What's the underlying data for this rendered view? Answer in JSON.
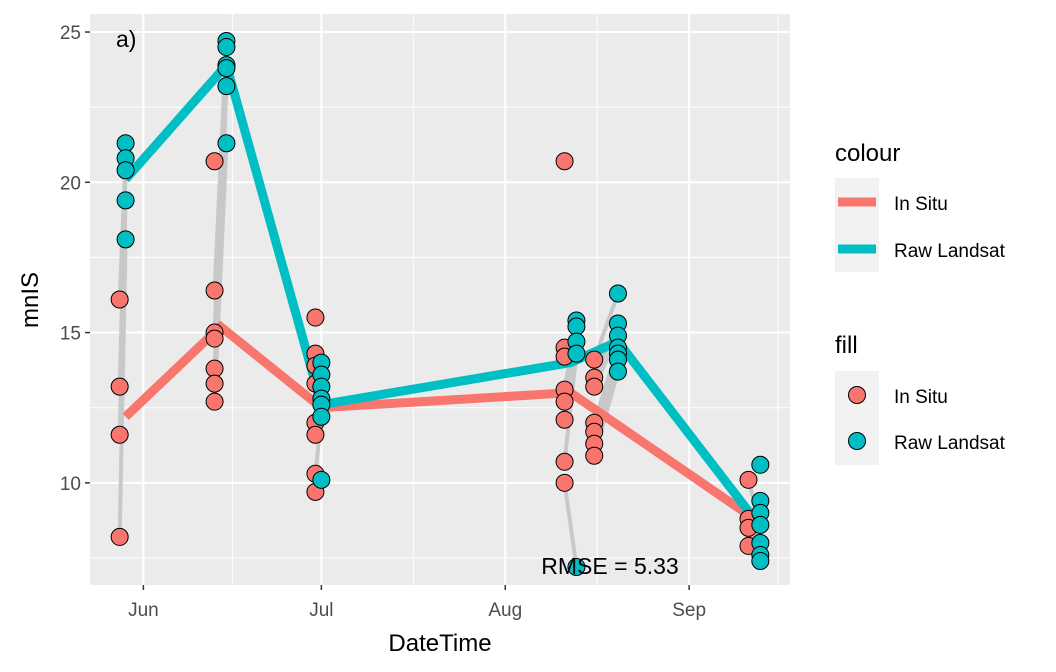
{
  "chart_data": {
    "type": "line",
    "panel_label": "a)",
    "xlabel": "DateTime",
    "ylabel": "mnIS",
    "x_ticks": [
      "Jun",
      "Jul",
      "Aug",
      "Sep"
    ],
    "x_tick_dates": [
      "2020-06-01",
      "2020-07-01",
      "2020-08-01",
      "2020-09-01"
    ],
    "xlim": [
      "2020-05-23",
      "2020-09-18"
    ],
    "ylim": [
      6.6,
      25.6
    ],
    "y_ticks": [
      10,
      15,
      20,
      25
    ],
    "grid": true,
    "annotation": "RMSE = 5.33",
    "colors": {
      "In Situ": "#F8766D",
      "Raw Landsat": "#00BFC4",
      "panel_bg": "#EBEBEB",
      "grid": "#FFFFFF",
      "pair_line": "#C8C8C8"
    },
    "legend": {
      "colour_title": "colour",
      "fill_title": "fill",
      "entries": [
        "In Situ",
        "Raw Landsat"
      ],
      "placement": "right"
    },
    "series": [
      {
        "name": "In Situ",
        "kind": "mean-line",
        "points": [
          {
            "x": "2020-05-29",
            "y": 12.2
          },
          {
            "x": "2020-06-14",
            "y": 15.2
          },
          {
            "x": "2020-07-01",
            "y": 12.5
          },
          {
            "x": "2020-08-12",
            "y": 13.0
          },
          {
            "x": "2020-09-12",
            "y": 8.8
          }
        ]
      },
      {
        "name": "Raw Landsat",
        "kind": "mean-line",
        "points": [
          {
            "x": "2020-05-29",
            "y": 20.1
          },
          {
            "x": "2020-06-15",
            "y": 23.9
          },
          {
            "x": "2020-07-01",
            "y": 12.6
          },
          {
            "x": "2020-08-12",
            "y": 14.0
          },
          {
            "x": "2020-08-20",
            "y": 14.7
          },
          {
            "x": "2020-09-12",
            "y": 8.8
          }
        ]
      }
    ],
    "point_groups": [
      {
        "in_situ_date": "2020-05-28",
        "landsat_date": "2020-05-29",
        "in_situ": [
          16.1,
          13.2,
          11.6,
          8.2
        ],
        "landsat": [
          21.3,
          20.8,
          20.4,
          19.4,
          18.1
        ]
      },
      {
        "in_situ_date": "2020-06-13",
        "landsat_date": "2020-06-15",
        "in_situ": [
          20.7,
          16.4,
          15.0,
          14.8,
          13.8,
          13.3,
          12.7
        ],
        "landsat": [
          24.7,
          24.5,
          23.9,
          23.8,
          23.2,
          21.3
        ]
      },
      {
        "in_situ_date": "2020-06-30",
        "landsat_date": "2020-07-01",
        "in_situ": [
          15.5,
          14.3,
          13.9,
          13.3,
          12.0,
          11.6,
          10.3,
          9.7
        ],
        "landsat": [
          14.0,
          13.6,
          13.2,
          12.8,
          12.6,
          12.2,
          10.1
        ]
      },
      {
        "in_situ_date": "2020-08-11",
        "landsat_date": "2020-08-13",
        "in_situ": [
          20.7,
          14.5,
          14.2,
          13.1,
          12.7,
          12.1,
          10.7,
          10.0
        ],
        "landsat": [
          15.4,
          15.2,
          14.7,
          14.3,
          7.2
        ]
      },
      {
        "in_situ_date": "2020-08-16",
        "landsat_date": "2020-08-20",
        "in_situ": [
          14.1,
          13.5,
          13.2,
          12.0,
          11.7,
          11.3,
          10.9
        ],
        "landsat": [
          16.3,
          15.3,
          14.9,
          14.5,
          14.3,
          14.1,
          13.7
        ]
      },
      {
        "in_situ_date": "2020-09-11",
        "landsat_date": "2020-09-13",
        "in_situ": [
          10.1,
          8.8,
          8.5,
          7.9
        ],
        "landsat": [
          10.6,
          9.4,
          9.0,
          8.6,
          8.0,
          7.6,
          7.4
        ]
      }
    ]
  }
}
